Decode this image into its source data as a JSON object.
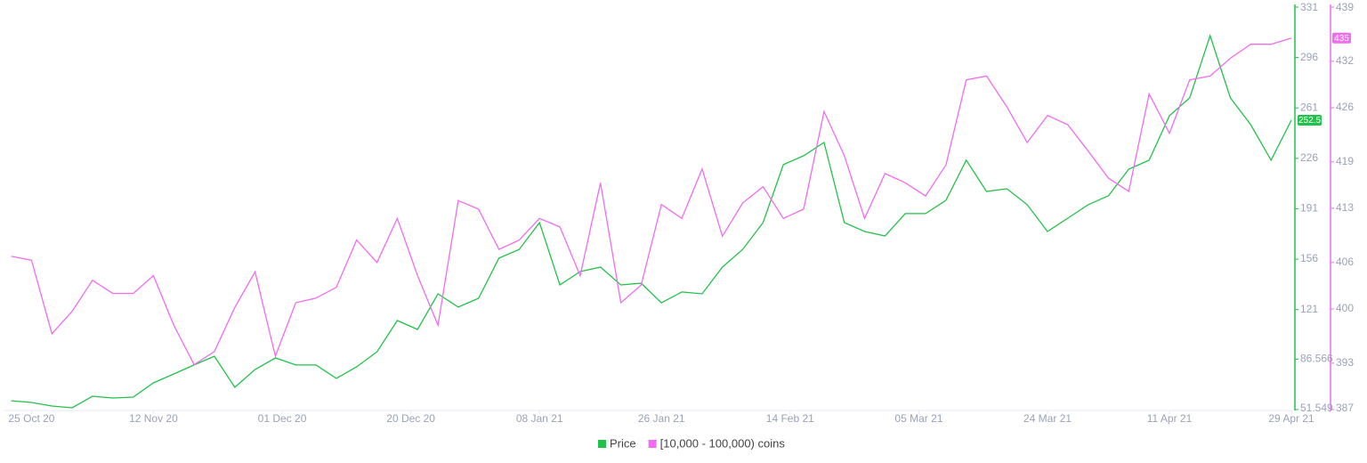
{
  "chart_data": {
    "type": "line",
    "x": [
      "2020-10-22",
      "2020-10-25",
      "2020-10-28",
      "2020-10-31",
      "2020-11-03",
      "2020-11-06",
      "2020-11-09",
      "2020-11-12",
      "2020-11-15",
      "2020-11-18",
      "2020-11-21",
      "2020-11-24",
      "2020-11-27",
      "2020-11-30",
      "2020-12-03",
      "2020-12-06",
      "2020-12-09",
      "2020-12-12",
      "2020-12-15",
      "2020-12-18",
      "2020-12-21",
      "2020-12-24",
      "2020-12-27",
      "2020-12-30",
      "2021-01-02",
      "2021-01-05",
      "2021-01-08",
      "2021-01-11",
      "2021-01-14",
      "2021-01-17",
      "2021-01-20",
      "2021-01-23",
      "2021-01-26",
      "2021-01-29",
      "2021-02-01",
      "2021-02-04",
      "2021-02-07",
      "2021-02-10",
      "2021-02-13",
      "2021-02-16",
      "2021-02-19",
      "2021-02-22",
      "2021-02-25",
      "2021-02-28",
      "2021-03-03",
      "2021-03-06",
      "2021-03-09",
      "2021-03-12",
      "2021-03-15",
      "2021-03-18",
      "2021-03-21",
      "2021-03-24",
      "2021-03-27",
      "2021-03-30",
      "2021-04-02",
      "2021-04-05",
      "2021-04-08",
      "2021-04-11",
      "2021-04-14",
      "2021-04-17",
      "2021-04-20",
      "2021-04-23",
      "2021-04-26",
      "2021-04-29"
    ],
    "xlim": [
      "2020-10-21",
      "2021-04-29"
    ],
    "xticks": [
      {
        "value": "2020-10-25",
        "label": "25 Oct 20"
      },
      {
        "value": "2020-11-12",
        "label": "12 Nov 20"
      },
      {
        "value": "2020-12-01",
        "label": "01 Dec 20"
      },
      {
        "value": "2020-12-20",
        "label": "20 Dec 20"
      },
      {
        "value": "2021-01-08",
        "label": "08 Jan 21"
      },
      {
        "value": "2021-01-26",
        "label": "26 Jan 21"
      },
      {
        "value": "2021-02-14",
        "label": "14 Feb 21"
      },
      {
        "value": "2021-03-05",
        "label": "05 Mar 21"
      },
      {
        "value": "2021-03-24",
        "label": "24 Mar 21"
      },
      {
        "value": "2021-04-11",
        "label": "11 Apr 21"
      },
      {
        "value": "2021-04-29",
        "label": "29 Apr 21"
      }
    ],
    "ylim": [
      51.549,
      331
    ],
    "yticks": [
      51.549,
      86.566,
      121,
      156,
      191,
      226,
      261,
      296,
      331
    ],
    "y2lim": [
      387,
      439
    ],
    "y2ticks": [
      387,
      393,
      400,
      406,
      413,
      419,
      426,
      432,
      439
    ],
    "series": [
      {
        "name": "Price",
        "color": "#22c24a",
        "values": [
          57.7,
          56.5,
          54.0,
          52.8,
          60.8,
          59.6,
          60.2,
          70.1,
          76.3,
          82.5,
          88.6,
          67.0,
          79.4,
          87.4,
          82.5,
          82.5,
          73.2,
          81.2,
          91.7,
          113.4,
          107.2,
          131.9,
          122.7,
          128.8,
          156.7,
          162.8,
          181.4,
          138.1,
          147.4,
          150.5,
          138.1,
          139.3,
          125.7,
          133.2,
          131.9,
          150.5,
          162.8,
          181.4,
          221.6,
          227.8,
          237.0,
          181.4,
          175.2,
          172.1,
          187.6,
          187.6,
          196.9,
          224.7,
          203.0,
          204.9,
          193.8,
          175.2,
          184.5,
          193.8,
          200.0,
          218.5,
          224.7,
          255.6,
          268.0,
          311.2,
          268.0,
          249.4,
          224.7,
          252.5
        ]
      },
      {
        "name": "[10,000 - 100,000) coins",
        "color": "#f06cf0",
        "axis": "y2",
        "values": [
          406.8,
          406.3,
          396.8,
          399.7,
          403.7,
          402.0,
          402.0,
          404.3,
          397.9,
          392.8,
          394.5,
          400.2,
          404.8,
          393.9,
          400.8,
          401.4,
          402.8,
          408.9,
          406.0,
          411.7,
          404.3,
          397.9,
          414.0,
          412.9,
          407.7,
          408.9,
          411.7,
          410.6,
          404.3,
          416.3,
          400.8,
          403.1,
          413.5,
          411.7,
          418.1,
          409.4,
          413.7,
          415.8,
          411.7,
          412.9,
          425.5,
          419.8,
          411.7,
          417.5,
          416.3,
          414.6,
          418.6,
          429.6,
          430.1,
          426.1,
          421.5,
          425.0,
          423.8,
          420.4,
          416.9,
          415.2,
          427.8,
          422.7,
          429.6,
          430.1,
          432.4,
          434.2,
          434.2,
          435
        ]
      }
    ]
  }
}
